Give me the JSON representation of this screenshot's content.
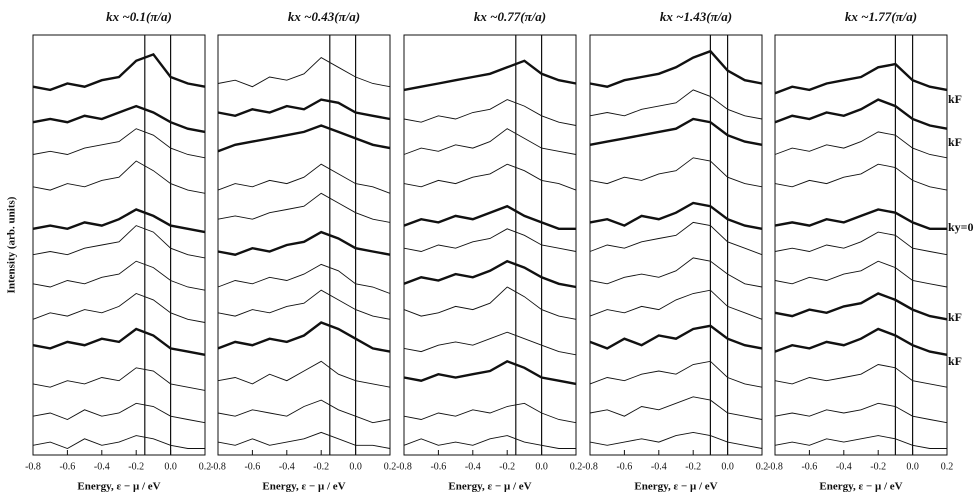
{
  "chart_data": [
    {
      "type": "line",
      "title": "kx ~0.1(π/a)",
      "xlabel": "Energy, ε − μ / eV",
      "ylabel": "Intensity (arb. units)",
      "xlim": [
        -0.8,
        0.2
      ],
      "xticks": [
        -0.8,
        -0.6,
        -0.4,
        -0.2,
        {
          "value": 0,
          "label": "0.0"
        },
        0.2
      ],
      "ylim": [
        0,
        13
      ],
      "x": [
        -0.8,
        -0.7,
        -0.6,
        -0.5,
        -0.4,
        -0.3,
        -0.2,
        -0.1,
        0,
        0.1,
        0.2
      ],
      "color": "#111",
      "highlight": [
        3,
        7,
        10,
        11
      ],
      "vlines": [
        -0.15,
        0
      ],
      "series": [
        {
          "values": [
            0.3,
            0.4,
            0.2,
            0.5,
            0.3,
            0.4,
            0.6,
            0.5,
            0.3,
            0.2,
            0.2
          ]
        },
        {
          "values": [
            1.2,
            1.3,
            1.1,
            1.4,
            1.2,
            1.3,
            1.6,
            1.5,
            1.2,
            1.1,
            1.0
          ]
        },
        {
          "values": [
            2.2,
            2.1,
            2.3,
            2.2,
            2.4,
            2.3,
            2.7,
            2.6,
            2.2,
            2.1,
            2.0
          ]
        },
        {
          "values": [
            3.4,
            3.3,
            3.5,
            3.4,
            3.6,
            3.5,
            3.9,
            3.7,
            3.3,
            3.2,
            3.1
          ]
        },
        {
          "values": [
            4.2,
            4.4,
            4.3,
            4.5,
            4.4,
            4.6,
            5.0,
            4.8,
            4.4,
            4.2,
            4.1
          ]
        },
        {
          "values": [
            5.3,
            5.2,
            5.4,
            5.3,
            5.5,
            5.6,
            6.0,
            5.8,
            5.4,
            5.2,
            5.1
          ]
        },
        {
          "values": [
            6.2,
            6.3,
            6.2,
            6.4,
            6.5,
            6.6,
            7.1,
            6.9,
            6.4,
            6.2,
            6.1
          ]
        },
        {
          "values": [
            7.0,
            7.1,
            7.0,
            7.2,
            7.1,
            7.3,
            7.6,
            7.4,
            7.1,
            7.0,
            6.9
          ]
        },
        {
          "values": [
            8.3,
            8.2,
            8.4,
            8.3,
            8.5,
            8.6,
            9.1,
            8.8,
            8.4,
            8.2,
            8.1
          ]
        },
        {
          "values": [
            9.3,
            9.4,
            9.3,
            9.5,
            9.6,
            9.7,
            10.1,
            9.9,
            9.5,
            9.3,
            9.2
          ]
        },
        {
          "values": [
            10.3,
            10.4,
            10.3,
            10.5,
            10.4,
            10.6,
            10.8,
            10.6,
            10.3,
            10.1,
            10.0
          ]
        },
        {
          "values": [
            11.4,
            11.3,
            11.5,
            11.4,
            11.6,
            11.7,
            12.2,
            12.4,
            11.7,
            11.5,
            11.4
          ]
        }
      ]
    },
    {
      "type": "line",
      "title": "kx ~0.43(π/a)",
      "xlabel": "Energy, ε − μ / eV",
      "xlim": [
        -0.8,
        0.2
      ],
      "xticks": [
        -0.8,
        -0.6,
        -0.4,
        -0.2,
        {
          "value": 0,
          "label": "0.0"
        },
        0.2
      ],
      "ylim": [
        0,
        13
      ],
      "x": [
        -0.8,
        -0.7,
        -0.6,
        -0.5,
        -0.4,
        -0.3,
        -0.2,
        -0.1,
        0,
        0.1,
        0.2
      ],
      "color": "#111",
      "highlight": [
        3,
        6,
        9,
        10
      ],
      "vlines": [
        -0.15,
        0
      ],
      "series": [
        {
          "values": [
            0.4,
            0.3,
            0.5,
            0.3,
            0.4,
            0.5,
            0.7,
            0.5,
            0.3,
            0.3,
            0.2
          ]
        },
        {
          "values": [
            1.3,
            1.2,
            1.4,
            1.3,
            1.2,
            1.5,
            1.7,
            1.4,
            1.2,
            1.0,
            1.1
          ]
        },
        {
          "values": [
            2.3,
            2.4,
            2.2,
            2.5,
            2.3,
            2.6,
            2.9,
            2.5,
            2.3,
            2.2,
            2.1
          ]
        },
        {
          "values": [
            3.3,
            3.5,
            3.4,
            3.6,
            3.5,
            3.7,
            4.1,
            3.9,
            3.6,
            3.3,
            3.2
          ]
        },
        {
          "values": [
            4.4,
            4.3,
            4.5,
            4.4,
            4.6,
            4.7,
            5.1,
            4.8,
            4.5,
            4.3,
            4.2
          ]
        },
        {
          "values": [
            5.2,
            5.4,
            5.3,
            5.5,
            5.4,
            5.6,
            5.9,
            5.7,
            5.3,
            5.2,
            5.0
          ]
        },
        {
          "values": [
            6.3,
            6.2,
            6.4,
            6.3,
            6.5,
            6.6,
            6.9,
            6.7,
            6.4,
            6.3,
            6.2
          ]
        },
        {
          "values": [
            7.3,
            7.4,
            7.3,
            7.5,
            7.6,
            7.7,
            8.1,
            7.8,
            7.5,
            7.3,
            7.2
          ]
        },
        {
          "values": [
            8.2,
            8.4,
            8.3,
            8.5,
            8.4,
            8.6,
            9.0,
            8.7,
            8.4,
            8.3,
            8.1
          ]
        },
        {
          "values": [
            9.4,
            9.6,
            9.7,
            9.8,
            9.9,
            10.0,
            10.2,
            10.0,
            9.8,
            9.6,
            9.5
          ]
        },
        {
          "values": [
            10.6,
            10.5,
            10.7,
            10.6,
            10.8,
            10.7,
            11.0,
            10.9,
            10.6,
            10.5,
            10.4
          ]
        },
        {
          "values": [
            11.5,
            11.6,
            11.4,
            11.7,
            11.6,
            11.8,
            12.3,
            12.0,
            11.7,
            11.5,
            11.4
          ]
        }
      ]
    },
    {
      "type": "line",
      "title": "kx ~0.77(π/a)",
      "xlabel": "Energy, ε − μ / eV",
      "xlim": [
        -0.8,
        0.2
      ],
      "xticks": [
        -0.8,
        -0.6,
        -0.4,
        -0.2,
        {
          "value": 0,
          "label": "0.0"
        },
        0.2
      ],
      "ylim": [
        0,
        13
      ],
      "x": [
        -0.8,
        -0.7,
        -0.6,
        -0.5,
        -0.4,
        -0.3,
        -0.2,
        -0.1,
        0,
        0.1,
        0.2
      ],
      "color": "#111",
      "highlight": [
        2,
        5,
        7,
        11
      ],
      "vlines": [
        -0.15,
        0
      ],
      "series": [
        {
          "values": [
            0.3,
            0.5,
            0.3,
            0.4,
            0.3,
            0.5,
            0.6,
            0.4,
            0.3,
            0.2,
            0.2
          ]
        },
        {
          "values": [
            1.2,
            1.1,
            1.3,
            1.2,
            1.4,
            1.3,
            1.5,
            1.6,
            1.3,
            1.1,
            1.0
          ]
        },
        {
          "values": [
            2.4,
            2.3,
            2.5,
            2.4,
            2.5,
            2.6,
            2.9,
            2.7,
            2.4,
            2.3,
            2.2
          ]
        },
        {
          "values": [
            3.3,
            3.2,
            3.4,
            3.5,
            3.4,
            3.6,
            3.8,
            3.6,
            3.4,
            3.2,
            3.1
          ]
        },
        {
          "values": [
            4.5,
            4.3,
            4.4,
            4.6,
            4.5,
            4.7,
            5.2,
            4.9,
            4.5,
            4.3,
            4.2
          ]
        },
        {
          "values": [
            5.3,
            5.5,
            5.4,
            5.6,
            5.5,
            5.7,
            6.0,
            5.8,
            5.5,
            5.3,
            5.2
          ]
        },
        {
          "values": [
            6.4,
            6.3,
            6.5,
            6.4,
            6.6,
            6.7,
            7.0,
            6.8,
            6.5,
            6.4,
            6.3
          ]
        },
        {
          "values": [
            7.1,
            7.3,
            7.2,
            7.4,
            7.3,
            7.5,
            7.7,
            7.4,
            7.2,
            7.0,
            7.0
          ]
        },
        {
          "values": [
            8.4,
            8.3,
            8.5,
            8.4,
            8.6,
            8.7,
            9.0,
            8.8,
            8.5,
            8.4,
            8.2
          ]
        },
        {
          "values": [
            9.3,
            9.5,
            9.4,
            9.6,
            9.5,
            9.7,
            10.1,
            9.8,
            9.5,
            9.4,
            9.3
          ]
        },
        {
          "values": [
            10.4,
            10.3,
            10.5,
            10.4,
            10.6,
            10.7,
            11.0,
            10.8,
            10.5,
            10.3,
            10.2
          ]
        },
        {
          "values": [
            11.3,
            11.4,
            11.5,
            11.6,
            11.7,
            11.8,
            12.0,
            12.2,
            11.8,
            11.6,
            11.5
          ]
        }
      ]
    },
    {
      "type": "line",
      "title": "kx ~1.43(π/a)",
      "xlabel": "Energy, ε − μ / eV",
      "xlim": [
        -0.8,
        0.2
      ],
      "xticks": [
        -0.8,
        -0.6,
        -0.4,
        -0.2,
        {
          "value": 0,
          "label": "0.0"
        },
        0.2
      ],
      "ylim": [
        0,
        13
      ],
      "x": [
        -0.8,
        -0.7,
        -0.6,
        -0.5,
        -0.4,
        -0.3,
        -0.2,
        -0.1,
        0,
        0.1,
        0.2
      ],
      "color": "#111",
      "highlight": [
        3,
        7,
        9,
        11
      ],
      "vlines": [
        -0.1,
        0
      ],
      "series": [
        {
          "values": [
            0.4,
            0.3,
            0.4,
            0.5,
            0.4,
            0.6,
            0.7,
            0.6,
            0.4,
            0.3,
            0.2
          ]
        },
        {
          "values": [
            1.3,
            1.4,
            1.2,
            1.5,
            1.4,
            1.6,
            1.8,
            1.7,
            1.3,
            1.2,
            1.1
          ]
        },
        {
          "values": [
            2.2,
            2.4,
            2.3,
            2.5,
            2.6,
            2.5,
            2.8,
            2.9,
            2.4,
            2.2,
            2.1
          ]
        },
        {
          "values": [
            3.5,
            3.3,
            3.6,
            3.4,
            3.7,
            3.6,
            3.9,
            4.0,
            3.6,
            3.4,
            3.3
          ]
        },
        {
          "values": [
            4.3,
            4.5,
            4.4,
            4.6,
            4.5,
            4.8,
            5.0,
            5.1,
            4.6,
            4.4,
            4.2
          ]
        },
        {
          "values": [
            5.4,
            5.3,
            5.5,
            5.6,
            5.5,
            5.7,
            6.1,
            6.0,
            5.6,
            5.3,
            5.2
          ]
        },
        {
          "values": [
            6.3,
            6.5,
            6.4,
            6.6,
            6.7,
            6.8,
            7.2,
            7.1,
            6.6,
            6.4,
            6.2
          ]
        },
        {
          "values": [
            7.2,
            7.3,
            7.1,
            7.4,
            7.3,
            7.5,
            7.8,
            7.7,
            7.3,
            7.1,
            7.0
          ]
        },
        {
          "values": [
            8.5,
            8.4,
            8.6,
            8.5,
            8.7,
            8.8,
            9.2,
            9.1,
            8.6,
            8.4,
            8.3
          ]
        },
        {
          "values": [
            9.6,
            9.7,
            9.8,
            9.9,
            10.0,
            10.1,
            10.4,
            10.3,
            9.9,
            9.7,
            9.6
          ]
        },
        {
          "values": [
            10.5,
            10.6,
            10.5,
            10.7,
            10.8,
            10.9,
            11.3,
            11.1,
            10.7,
            10.5,
            10.4
          ]
        },
        {
          "values": [
            11.5,
            11.4,
            11.6,
            11.7,
            11.8,
            12.0,
            12.3,
            12.5,
            11.9,
            11.6,
            11.5
          ]
        }
      ]
    },
    {
      "type": "line",
      "title": "kx ~1.77(π/a)",
      "xlabel": "Energy, ε − μ / eV",
      "xlim": [
        -0.8,
        0.2
      ],
      "xticks": [
        -0.8,
        -0.6,
        -0.4,
        -0.2,
        {
          "value": 0,
          "label": "0.0"
        },
        0.2
      ],
      "ylim": [
        0,
        13
      ],
      "x": [
        -0.8,
        -0.7,
        -0.6,
        -0.5,
        -0.4,
        -0.3,
        -0.2,
        -0.1,
        0,
        0.1,
        0.2
      ],
      "color": "#111",
      "highlight": [
        3,
        4,
        7,
        10,
        11
      ],
      "vlines": [
        -0.1,
        0
      ],
      "annotations": [
        "kF",
        "kF",
        "ky=0",
        "kF",
        "kF"
      ],
      "series": [
        {
          "values": [
            0.3,
            0.4,
            0.3,
            0.5,
            0.4,
            0.5,
            0.6,
            0.5,
            0.3,
            0.2,
            0.2
          ]
        },
        {
          "values": [
            1.2,
            1.3,
            1.2,
            1.4,
            1.3,
            1.4,
            1.6,
            1.5,
            1.2,
            1.1,
            1.0
          ]
        },
        {
          "values": [
            2.3,
            2.2,
            2.4,
            2.3,
            2.4,
            2.5,
            2.8,
            2.7,
            2.3,
            2.2,
            2.1
          ]
        },
        {
          "values": [
            3.2,
            3.4,
            3.3,
            3.5,
            3.4,
            3.6,
            3.9,
            3.7,
            3.4,
            3.2,
            3.1
          ]
        },
        {
          "values": [
            4.4,
            4.3,
            4.5,
            4.4,
            4.6,
            4.7,
            5.0,
            4.8,
            4.5,
            4.3,
            4.2
          ]
        },
        {
          "values": [
            5.4,
            5.3,
            5.5,
            5.4,
            5.6,
            5.7,
            6.0,
            5.8,
            5.4,
            5.3,
            5.2
          ]
        },
        {
          "values": [
            6.3,
            6.4,
            6.3,
            6.5,
            6.4,
            6.6,
            6.9,
            6.8,
            6.4,
            6.3,
            6.2
          ]
        },
        {
          "values": [
            7.1,
            7.2,
            7.1,
            7.3,
            7.2,
            7.4,
            7.6,
            7.5,
            7.2,
            7.0,
            7.0
          ]
        },
        {
          "values": [
            8.4,
            8.3,
            8.5,
            8.4,
            8.6,
            8.7,
            9.0,
            8.9,
            8.5,
            8.3,
            8.2
          ]
        },
        {
          "values": [
            9.3,
            9.5,
            9.4,
            9.6,
            9.5,
            9.7,
            10.0,
            9.9,
            9.5,
            9.3,
            9.2
          ]
        },
        {
          "values": [
            10.3,
            10.5,
            10.4,
            10.6,
            10.5,
            10.7,
            11.0,
            10.8,
            10.4,
            10.2,
            10.1
          ]
        },
        {
          "values": [
            11.2,
            11.4,
            11.3,
            11.5,
            11.6,
            11.7,
            12.0,
            12.1,
            11.6,
            11.4,
            11.3
          ]
        }
      ]
    }
  ]
}
